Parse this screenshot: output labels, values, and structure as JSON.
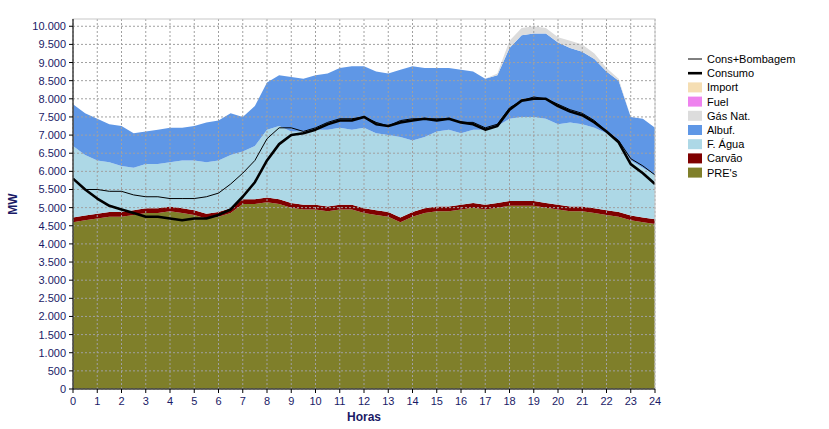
{
  "chart_data": {
    "type": "area",
    "stacked": true,
    "grid": true,
    "legend": "right",
    "x_label": "Horas",
    "y_label": "MW",
    "x": [
      0,
      0.5,
      1,
      1.5,
      2,
      2.5,
      3,
      3.5,
      4,
      4.5,
      5,
      5.5,
      6,
      6.5,
      7,
      7.5,
      8,
      8.5,
      9,
      9.5,
      10,
      10.5,
      11,
      11.5,
      12,
      12.5,
      13,
      13.5,
      14,
      14.5,
      15,
      15.5,
      16,
      16.5,
      17,
      17.5,
      18,
      18.5,
      19,
      19.5,
      20,
      20.5,
      21,
      21.5,
      22,
      22.5,
      23,
      23.5,
      24
    ],
    "xlim": [
      0,
      24
    ],
    "xticks": [
      0,
      1,
      2,
      3,
      4,
      5,
      6,
      7,
      8,
      9,
      10,
      11,
      12,
      13,
      14,
      15,
      16,
      17,
      18,
      19,
      20,
      21,
      22,
      23,
      24
    ],
    "ylim": [
      0,
      10200
    ],
    "yticks": [
      0,
      500,
      {
        "value": 1000,
        "label": "1.000"
      },
      {
        "value": 1500,
        "label": "1.500"
      },
      {
        "value": 2000,
        "label": "2.000"
      },
      {
        "value": 2500,
        "label": "2.500"
      },
      {
        "value": 3000,
        "label": "3.000"
      },
      {
        "value": 3500,
        "label": "3.500"
      },
      {
        "value": 4000,
        "label": "4.000"
      },
      {
        "value": 4500,
        "label": "4.500"
      },
      {
        "value": 5000,
        "label": "5.000"
      },
      {
        "value": 5500,
        "label": "5.500"
      },
      {
        "value": 6000,
        "label": "6.000"
      },
      {
        "value": 6500,
        "label": "6.500"
      },
      {
        "value": 7000,
        "label": "7.000"
      },
      {
        "value": 7500,
        "label": "7.500"
      },
      {
        "value": 8000,
        "label": "8.000"
      },
      {
        "value": 8500,
        "label": "8.500"
      },
      {
        "value": 9000,
        "label": "9.000"
      },
      {
        "value": 9500,
        "label": "9.500"
      },
      {
        "value": 10000,
        "label": "10.000"
      }
    ],
    "series": [
      {
        "name": "Cons+Bombagem",
        "type": "line",
        "line_style": "thin",
        "color": "#000000",
        "values": [
          5800,
          5500,
          5500,
          5450,
          5450,
          5350,
          5300,
          5300,
          5250,
          5250,
          5250,
          5300,
          5400,
          5650,
          5950,
          6300,
          6900,
          7200,
          7200,
          7100,
          7200,
          7350,
          7450,
          7450,
          7500,
          7350,
          7250,
          7400,
          7450,
          7450,
          7450,
          7450,
          7350,
          7350,
          7200,
          7300,
          7750,
          7950,
          8050,
          8000,
          7850,
          7700,
          7600,
          7400,
          7100,
          6850,
          6350,
          6150,
          5900
        ]
      },
      {
        "name": "Consumo",
        "type": "line",
        "line_style": "thick",
        "color": "#000000",
        "values": [
          5800,
          5500,
          5250,
          5050,
          4950,
          4850,
          4750,
          4750,
          4700,
          4650,
          4700,
          4700,
          4800,
          4950,
          5300,
          5700,
          6300,
          6750,
          7000,
          7050,
          7150,
          7300,
          7400,
          7400,
          7500,
          7300,
          7250,
          7350,
          7400,
          7450,
          7400,
          7450,
          7350,
          7300,
          7150,
          7250,
          7700,
          7950,
          8000,
          8000,
          7800,
          7650,
          7550,
          7350,
          7100,
          6800,
          6200,
          5950,
          5650
        ]
      },
      {
        "name": "Import",
        "type": "area",
        "color": "#f5deb3",
        "values": [
          0,
          0,
          0,
          0,
          0,
          0,
          0,
          0,
          0,
          0,
          0,
          0,
          0,
          0,
          0,
          0,
          0,
          0,
          0,
          0,
          0,
          0,
          0,
          0,
          0,
          0,
          0,
          0,
          0,
          0,
          0,
          0,
          0,
          0,
          0,
          0,
          0,
          0,
          0,
          0,
          0,
          0,
          0,
          0,
          0,
          0,
          0,
          0,
          0
        ]
      },
      {
        "name": "Fuel",
        "type": "area",
        "color": "#ee82ee",
        "values": [
          0,
          0,
          0,
          0,
          0,
          0,
          0,
          0,
          0,
          0,
          0,
          0,
          0,
          0,
          0,
          0,
          0,
          0,
          0,
          0,
          0,
          0,
          0,
          0,
          0,
          0,
          0,
          0,
          0,
          0,
          0,
          0,
          0,
          0,
          0,
          0,
          0,
          0,
          0,
          0,
          0,
          0,
          0,
          0,
          0,
          0,
          0,
          0,
          0
        ]
      },
      {
        "name": "Gás Nat.",
        "type": "area",
        "color": "#dcdcdc",
        "values": [
          0,
          0,
          0,
          0,
          0,
          0,
          0,
          0,
          0,
          0,
          0,
          0,
          0,
          0,
          0,
          0,
          0,
          0,
          0,
          0,
          0,
          0,
          0,
          0,
          0,
          0,
          0,
          0,
          0,
          0,
          0,
          0,
          0,
          0,
          0,
          50,
          200,
          200,
          200,
          150,
          150,
          200,
          200,
          150,
          100,
          50,
          0,
          0,
          0
        ]
      },
      {
        "name": "Albuf.",
        "type": "area",
        "color": "#5f97e6",
        "values": [
          1150,
          1150,
          1150,
          1050,
          1100,
          950,
          900,
          950,
          950,
          900,
          950,
          1100,
          1100,
          1150,
          950,
          1100,
          1300,
          1400,
          1500,
          1450,
          1500,
          1550,
          1650,
          1750,
          1700,
          1700,
          1700,
          1850,
          2050,
          1900,
          1750,
          1700,
          1750,
          1600,
          1400,
          1400,
          1950,
          2250,
          2300,
          2350,
          2250,
          2050,
          2000,
          1900,
          1700,
          1650,
          1200,
          1350,
          1300
        ]
      },
      {
        "name": "F. Água",
        "type": "area",
        "color": "#add8e6",
        "values": [
          1970,
          1670,
          1470,
          1370,
          1270,
          1170,
          1220,
          1220,
          1220,
          1320,
          1370,
          1420,
          1420,
          1470,
          1320,
          1470,
          1870,
          2020,
          1970,
          2020,
          2070,
          2120,
          2120,
          2070,
          2220,
          2120,
          2120,
          2220,
          1970,
          1970,
          2070,
          2120,
          1970,
          2020,
          2070,
          2120,
          2270,
          2320,
          2320,
          2320,
          2220,
          2320,
          2270,
          2220,
          2120,
          1970,
          1520,
          1370,
          1220
        ]
      },
      {
        "name": "Carvão",
        "type": "area",
        "color": "#7f0000",
        "values": [
          130,
          130,
          130,
          130,
          130,
          130,
          130,
          130,
          130,
          130,
          130,
          130,
          130,
          130,
          130,
          130,
          130,
          130,
          130,
          130,
          130,
          130,
          130,
          130,
          130,
          130,
          130,
          130,
          130,
          130,
          130,
          130,
          130,
          130,
          130,
          130,
          130,
          130,
          130,
          130,
          130,
          130,
          130,
          130,
          130,
          130,
          130,
          130,
          130
        ]
      },
      {
        "name": "PRE's",
        "type": "area",
        "color": "#7f7f2a",
        "values": [
          4600,
          4650,
          4700,
          4750,
          4750,
          4800,
          4850,
          4850,
          4900,
          4850,
          4800,
          4700,
          4750,
          4850,
          5100,
          5100,
          5150,
          5100,
          5000,
          4950,
          4950,
          4900,
          4950,
          4950,
          4850,
          4800,
          4750,
          4600,
          4750,
          4850,
          4900,
          4900,
          4950,
          5000,
          4950,
          5000,
          5050,
          5050,
          5050,
          5000,
          4950,
          4900,
          4900,
          4850,
          4800,
          4750,
          4650,
          4600,
          4550
        ]
      }
    ]
  }
}
